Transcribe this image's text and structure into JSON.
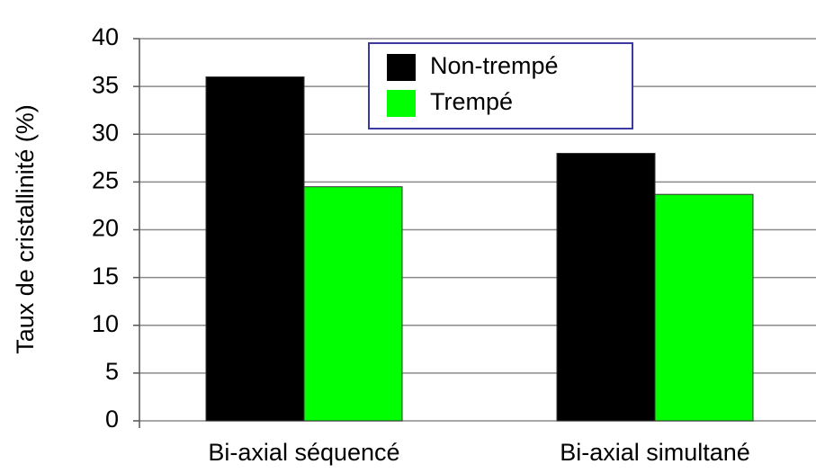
{
  "chart_data": {
    "type": "bar",
    "y_label": "Taux de cristallinité (%)",
    "categories": [
      "Bi-axial séquencé",
      "Bi-axial simultané"
    ],
    "series": [
      {
        "name": "Non-trempé",
        "color": "#000000",
        "values": [
          36,
          28
        ]
      },
      {
        "name": "Trempé",
        "color": "#00ff00",
        "values": [
          24.5,
          23.7
        ]
      }
    ],
    "ylim": [
      0,
      40
    ],
    "yticks": [
      0,
      5,
      10,
      15,
      20,
      25,
      30,
      35,
      40
    ],
    "grid": true
  }
}
